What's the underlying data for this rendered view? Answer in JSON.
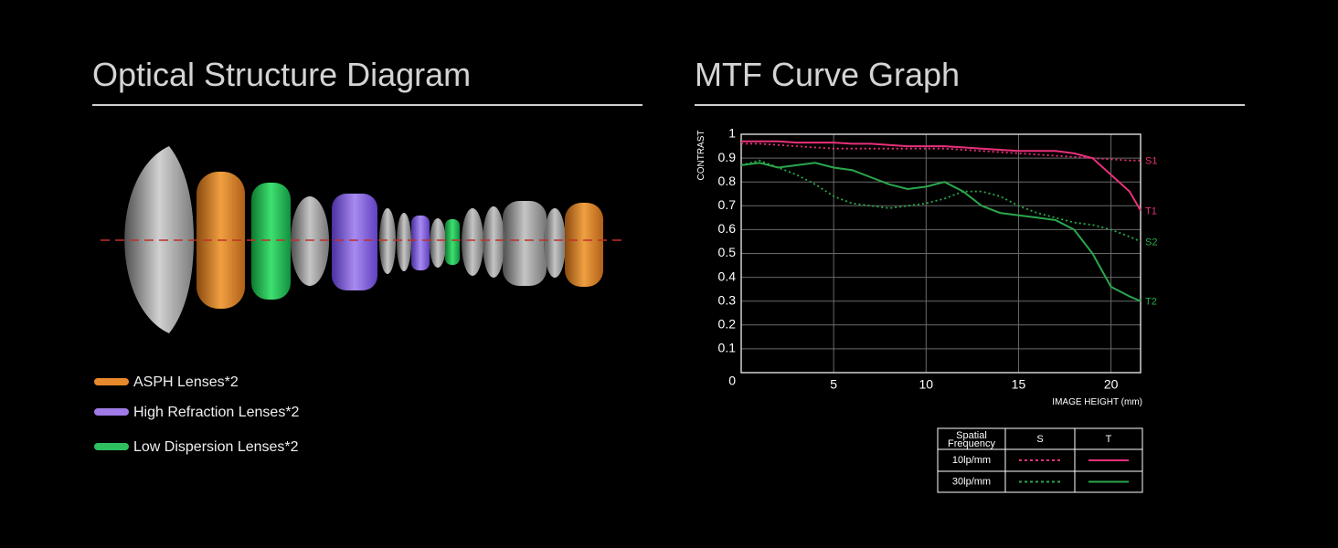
{
  "left": {
    "title": "Optical Structure Diagram",
    "legend": [
      {
        "label": "ASPH Lenses*2",
        "color": "#e8892c"
      },
      {
        "label": "High Refraction Lenses*2",
        "color": "#a07ae6"
      },
      {
        "label": "Low Dispersion Lenses*2",
        "color": "#2ec060"
      }
    ]
  },
  "chart_data": {
    "type": "line",
    "title": "MTF Curve Graph",
    "y_label": "CONTRAST",
    "x_label": "IMAGE HEIGHT  (mm)",
    "x": [
      0,
      1,
      2,
      3,
      4,
      5,
      6,
      7,
      8,
      9,
      10,
      11,
      12,
      13,
      14,
      15,
      16,
      17,
      18,
      19,
      20,
      21,
      21.6
    ],
    "series": [
      {
        "name": "S1",
        "color": "#e8307a",
        "dashed": true,
        "values": [
          0.96,
          0.96,
          0.955,
          0.95,
          0.945,
          0.94,
          0.94,
          0.94,
          0.94,
          0.94,
          0.94,
          0.94,
          0.935,
          0.93,
          0.925,
          0.92,
          0.915,
          0.91,
          0.905,
          0.9,
          0.895,
          0.89,
          0.89
        ]
      },
      {
        "name": "T1",
        "color": "#e8307a",
        "dashed": false,
        "values": [
          0.97,
          0.97,
          0.97,
          0.965,
          0.965,
          0.965,
          0.96,
          0.96,
          0.955,
          0.95,
          0.95,
          0.95,
          0.945,
          0.94,
          0.935,
          0.93,
          0.93,
          0.93,
          0.92,
          0.9,
          0.83,
          0.76,
          0.68
        ]
      },
      {
        "name": "S2",
        "color": "#2aa84c",
        "dashed": true,
        "values": [
          0.87,
          0.89,
          0.86,
          0.83,
          0.79,
          0.74,
          0.71,
          0.7,
          0.69,
          0.7,
          0.71,
          0.73,
          0.76,
          0.76,
          0.74,
          0.7,
          0.67,
          0.65,
          0.63,
          0.62,
          0.6,
          0.57,
          0.55
        ]
      },
      {
        "name": "T2",
        "color": "#2aa84c",
        "dashed": false,
        "values": [
          0.87,
          0.88,
          0.86,
          0.87,
          0.88,
          0.86,
          0.85,
          0.82,
          0.79,
          0.77,
          0.78,
          0.8,
          0.76,
          0.7,
          0.67,
          0.66,
          0.65,
          0.64,
          0.6,
          0.5,
          0.36,
          0.32,
          0.3
        ]
      }
    ],
    "xlim": [
      0,
      21.6
    ],
    "ylim": [
      0,
      1
    ],
    "xticks": [
      5,
      10,
      15,
      20
    ],
    "yticks": [
      0,
      0.1,
      0.2,
      0.3,
      0.4,
      0.5,
      0.6,
      0.7,
      0.8,
      0.9,
      1
    ],
    "grid": true,
    "legend_table": {
      "header": [
        "Spatial Frequency",
        "S",
        "T"
      ],
      "rows": [
        "10lp/mm",
        "30lp/mm"
      ]
    }
  }
}
